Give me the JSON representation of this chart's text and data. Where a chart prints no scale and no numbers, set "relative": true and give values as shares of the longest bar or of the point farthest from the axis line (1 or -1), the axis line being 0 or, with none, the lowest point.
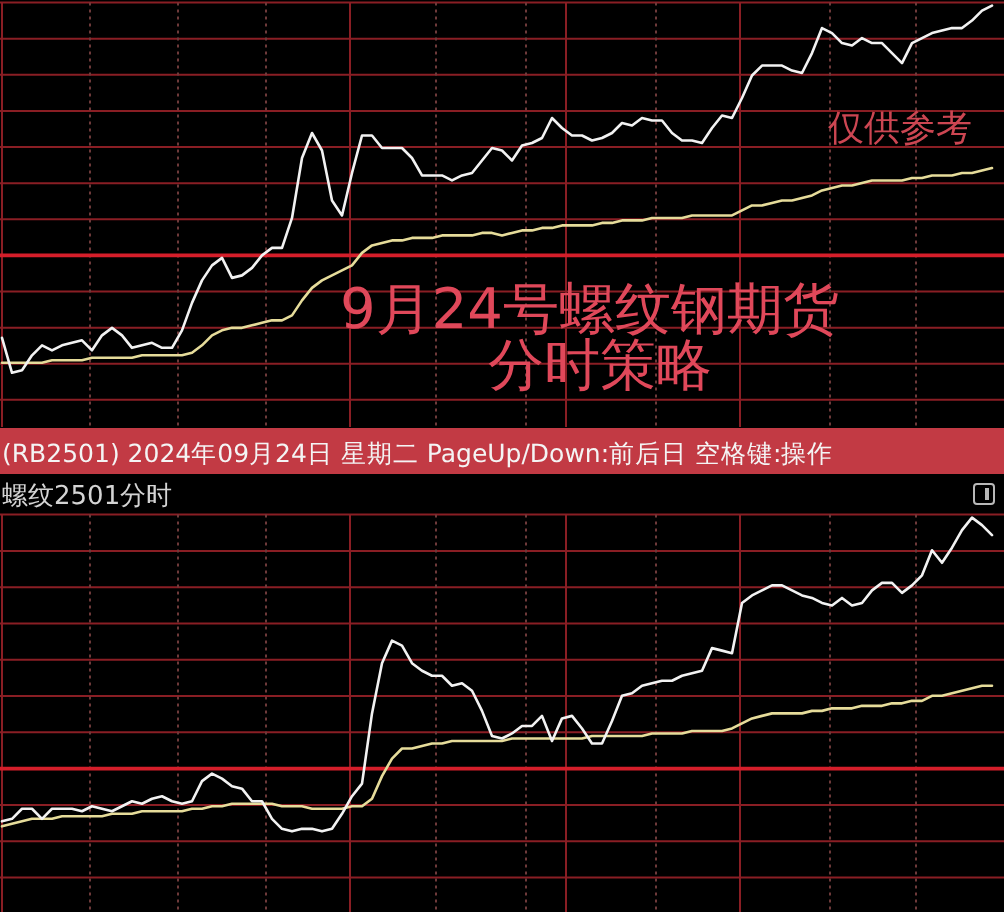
{
  "chart_data": [
    {
      "type": "line",
      "title": "9月24号螺纹钢期货",
      "subtitle": "分时策略",
      "annotations": [
        "仅供参考",
        "(RB2501) 2024年09月24日 星期二 PageUp/Down:前后日 空格键:操作"
      ],
      "relative": true,
      "grid": true,
      "ref_lines": [
        {
          "axis": "y",
          "value": 0,
          "color": "#d41e2a"
        }
      ],
      "categories": [
        null,
        null,
        null,
        null,
        null,
        null,
        null,
        null,
        null,
        null,
        null,
        null,
        null,
        null,
        null,
        null,
        null,
        null,
        null,
        null,
        null,
        null,
        null,
        null,
        null,
        null,
        null,
        null,
        null,
        null,
        null,
        null,
        null,
        null,
        null,
        null,
        null,
        null,
        null,
        null,
        null,
        null,
        null,
        null,
        null,
        null,
        null,
        null,
        null,
        null,
        null,
        null,
        null,
        null,
        null,
        null,
        null,
        null,
        null,
        null,
        null,
        null,
        null,
        null,
        null,
        null,
        null,
        null,
        null,
        null,
        null,
        null,
        null,
        null,
        null,
        null,
        null,
        null,
        null,
        null,
        null,
        null,
        null,
        null,
        null,
        null,
        null,
        null,
        null,
        null,
        null,
        null,
        null,
        null,
        null,
        null,
        null,
        null,
        null,
        null
      ],
      "series": [
        {
          "color": "#e6dc9a",
          "values": [
            -0.43,
            -0.43,
            -0.43,
            -0.43,
            -0.43,
            -0.42,
            -0.42,
            -0.42,
            -0.42,
            -0.41,
            -0.41,
            -0.41,
            -0.41,
            -0.41,
            -0.4,
            -0.4,
            -0.4,
            -0.4,
            -0.4,
            -0.39,
            -0.36,
            -0.32,
            -0.3,
            -0.29,
            -0.29,
            -0.28,
            -0.27,
            -0.26,
            -0.26,
            -0.24,
            -0.18,
            -0.13,
            -0.1,
            -0.08,
            -0.06,
            -0.04,
            0.01,
            0.04,
            0.05,
            0.06,
            0.06,
            0.07,
            0.07,
            0.07,
            0.08,
            0.08,
            0.08,
            0.08,
            0.09,
            0.09,
            0.08,
            0.09,
            0.1,
            0.1,
            0.11,
            0.11,
            0.12,
            0.12,
            0.12,
            0.12,
            0.13,
            0.13,
            0.14,
            0.14,
            0.14,
            0.15,
            0.15,
            0.15,
            0.15,
            0.16,
            0.16,
            0.16,
            0.16,
            0.16,
            0.18,
            0.2,
            0.2,
            0.21,
            0.22,
            0.22,
            0.23,
            0.24,
            0.26,
            0.27,
            0.28,
            0.28,
            0.29,
            0.3,
            0.3,
            0.3,
            0.3,
            0.31,
            0.31,
            0.32,
            0.32,
            0.32,
            0.33,
            0.33,
            0.34,
            0.35
          ]
        },
        {
          "color": "#f2f2f2",
          "values": [
            -0.33,
            -0.47,
            -0.46,
            -0.4,
            -0.36,
            -0.38,
            -0.36,
            -0.35,
            -0.34,
            -0.38,
            -0.32,
            -0.29,
            -0.32,
            -0.37,
            -0.36,
            -0.35,
            -0.37,
            -0.37,
            -0.3,
            -0.19,
            -0.1,
            -0.04,
            -0.01,
            -0.09,
            -0.08,
            -0.05,
            0.0,
            0.03,
            0.03,
            0.15,
            0.39,
            0.49,
            0.42,
            0.22,
            0.16,
            0.33,
            0.48,
            0.48,
            0.43,
            0.43,
            0.43,
            0.39,
            0.32,
            0.32,
            0.32,
            0.3,
            0.32,
            0.33,
            0.38,
            0.43,
            0.42,
            0.38,
            0.44,
            0.45,
            0.47,
            0.55,
            0.51,
            0.48,
            0.48,
            0.46,
            0.47,
            0.49,
            0.53,
            0.52,
            0.55,
            0.54,
            0.54,
            0.49,
            0.46,
            0.46,
            0.45,
            0.51,
            0.56,
            0.55,
            0.63,
            0.72,
            0.76,
            0.76,
            0.76,
            0.74,
            0.73,
            0.81,
            0.91,
            0.89,
            0.85,
            0.84,
            0.87,
            0.85,
            0.85,
            0.81,
            0.77,
            0.85,
            0.87,
            0.89,
            0.9,
            0.91,
            0.91,
            0.94,
            0.98,
            1.0
          ]
        }
      ]
    },
    {
      "type": "line",
      "title": "螺纹2501",
      "subtitle": "分时",
      "relative": true,
      "grid": true,
      "ref_lines": [
        {
          "axis": "y",
          "value": 0,
          "color": "#d41e2a"
        }
      ],
      "categories": [
        null,
        null,
        null,
        null,
        null,
        null,
        null,
        null,
        null,
        null,
        null,
        null,
        null,
        null,
        null,
        null,
        null,
        null,
        null,
        null,
        null,
        null,
        null,
        null,
        null,
        null,
        null,
        null,
        null,
        null,
        null,
        null,
        null,
        null,
        null,
        null,
        null,
        null,
        null,
        null,
        null,
        null,
        null,
        null,
        null,
        null,
        null,
        null,
        null,
        null,
        null,
        null,
        null,
        null,
        null,
        null,
        null,
        null,
        null,
        null,
        null,
        null,
        null,
        null,
        null,
        null,
        null,
        null,
        null,
        null,
        null,
        null,
        null,
        null,
        null,
        null,
        null,
        null,
        null,
        null,
        null,
        null,
        null,
        null,
        null,
        null,
        null,
        null,
        null,
        null,
        null,
        null,
        null,
        null,
        null,
        null,
        null,
        null,
        null,
        null
      ],
      "series": [
        {
          "color": "#e6dc9a",
          "values": [
            -0.23,
            -0.22,
            -0.21,
            -0.2,
            -0.2,
            -0.2,
            -0.19,
            -0.19,
            -0.19,
            -0.19,
            -0.19,
            -0.18,
            -0.18,
            -0.18,
            -0.17,
            -0.17,
            -0.17,
            -0.17,
            -0.17,
            -0.16,
            -0.16,
            -0.15,
            -0.15,
            -0.14,
            -0.14,
            -0.14,
            -0.14,
            -0.14,
            -0.15,
            -0.15,
            -0.15,
            -0.16,
            -0.16,
            -0.16,
            -0.16,
            -0.15,
            -0.15,
            -0.12,
            -0.03,
            0.04,
            0.08,
            0.08,
            0.09,
            0.1,
            0.1,
            0.11,
            0.11,
            0.11,
            0.11,
            0.11,
            0.11,
            0.12,
            0.12,
            0.12,
            0.12,
            0.12,
            0.12,
            0.12,
            0.12,
            0.13,
            0.13,
            0.13,
            0.13,
            0.13,
            0.13,
            0.14,
            0.14,
            0.14,
            0.14,
            0.15,
            0.15,
            0.15,
            0.15,
            0.16,
            0.18,
            0.2,
            0.21,
            0.22,
            0.22,
            0.22,
            0.22,
            0.23,
            0.23,
            0.24,
            0.24,
            0.24,
            0.25,
            0.25,
            0.25,
            0.26,
            0.26,
            0.27,
            0.27,
            0.29,
            0.29,
            0.3,
            0.31,
            0.32,
            0.33,
            0.33
          ]
        },
        {
          "color": "#f2f2f2",
          "values": [
            -0.21,
            -0.2,
            -0.16,
            -0.16,
            -0.2,
            -0.16,
            -0.16,
            -0.16,
            -0.17,
            -0.15,
            -0.16,
            -0.17,
            -0.15,
            -0.13,
            -0.14,
            -0.12,
            -0.11,
            -0.13,
            -0.14,
            -0.13,
            -0.05,
            -0.02,
            -0.04,
            -0.07,
            -0.08,
            -0.13,
            -0.13,
            -0.2,
            -0.24,
            -0.25,
            -0.24,
            -0.24,
            -0.25,
            -0.24,
            -0.18,
            -0.11,
            -0.06,
            0.22,
            0.42,
            0.51,
            0.49,
            0.42,
            0.39,
            0.37,
            0.37,
            0.33,
            0.34,
            0.31,
            0.23,
            0.13,
            0.12,
            0.14,
            0.17,
            0.17,
            0.21,
            0.11,
            0.2,
            0.21,
            0.16,
            0.1,
            0.1,
            0.19,
            0.29,
            0.3,
            0.33,
            0.34,
            0.35,
            0.35,
            0.37,
            0.38,
            0.39,
            0.48,
            0.47,
            0.46,
            0.66,
            0.69,
            0.71,
            0.73,
            0.73,
            0.71,
            0.69,
            0.68,
            0.66,
            0.65,
            0.68,
            0.65,
            0.66,
            0.71,
            0.74,
            0.74,
            0.7,
            0.73,
            0.77,
            0.87,
            0.82,
            0.88,
            0.95,
            1.0,
            0.97,
            0.93
          ]
        }
      ]
    }
  ]
}
